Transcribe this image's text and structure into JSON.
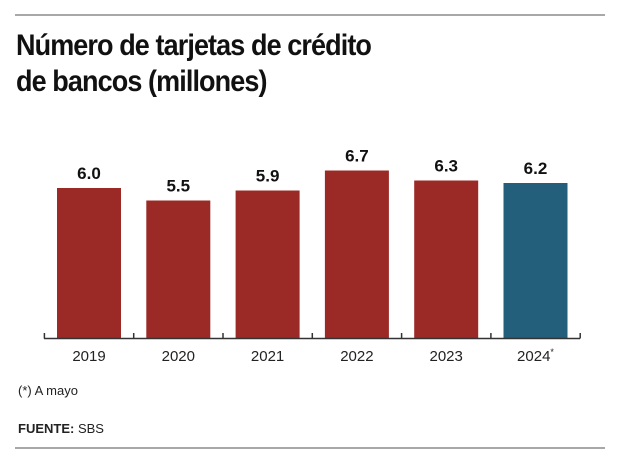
{
  "chart_data": {
    "type": "bar",
    "title": "Número de tarjetas de crédito de bancos (millones)",
    "title_lines": [
      "Número de tarjetas de crédito",
      "de bancos (millones)"
    ],
    "categories": [
      "2019",
      "2020",
      "2021",
      "2022",
      "2023",
      "2024*"
    ],
    "values": [
      6.0,
      5.5,
      5.9,
      6.7,
      6.3,
      6.2
    ],
    "value_labels": [
      "6.0",
      "5.5",
      "5.9",
      "6.7",
      "6.3",
      "6.2"
    ],
    "bar_colors": [
      "#9b2a26",
      "#9b2a26",
      "#9b2a26",
      "#9b2a26",
      "#9b2a26",
      "#235e7b"
    ],
    "xlabel": "",
    "ylabel": "",
    "ylim": [
      0,
      7.5
    ],
    "grid": false,
    "legend": "none"
  },
  "footnote": "(*) A mayo",
  "source": {
    "label": "FUENTE:",
    "value": "SBS"
  },
  "colors": {
    "primary_bar": "#9b2a26",
    "highlight_bar": "#235e7b",
    "axis": "#333333",
    "rule": "#a8a8a8"
  }
}
